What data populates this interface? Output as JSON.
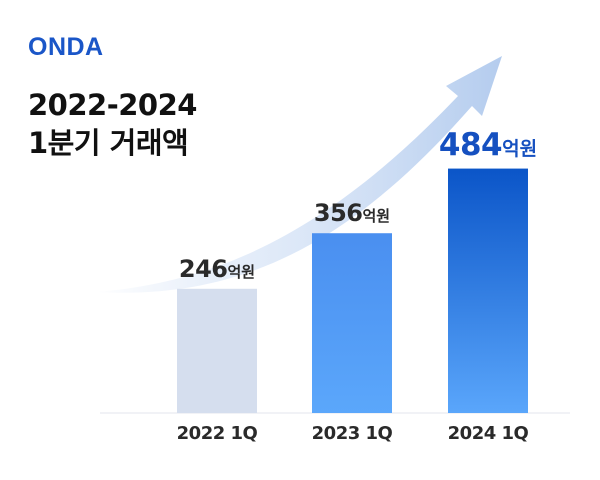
{
  "logo": "ONDA",
  "title": {
    "line1": "2022-2024",
    "line2": "1분기 거래액"
  },
  "colors": {
    "brand": "#1a56c8",
    "bar_2022": "#d5deee",
    "bar_2023_top": "#4a8ff0",
    "bar_2023_bottom": "#5ba7fb",
    "bar_2024_top": "#0b55c8",
    "bar_2024_bottom": "#5aa6fb",
    "highlight_label": "#1550c0"
  },
  "chart_data": {
    "type": "bar",
    "categories": [
      "2022 1Q",
      "2023 1Q",
      "2024 1Q"
    ],
    "values": [
      246,
      356,
      484
    ],
    "unit": "억원",
    "value_labels": [
      "246",
      "356",
      "484"
    ],
    "highlight_index": 2,
    "decoration": "upward-curved-arrow",
    "grid": false
  }
}
